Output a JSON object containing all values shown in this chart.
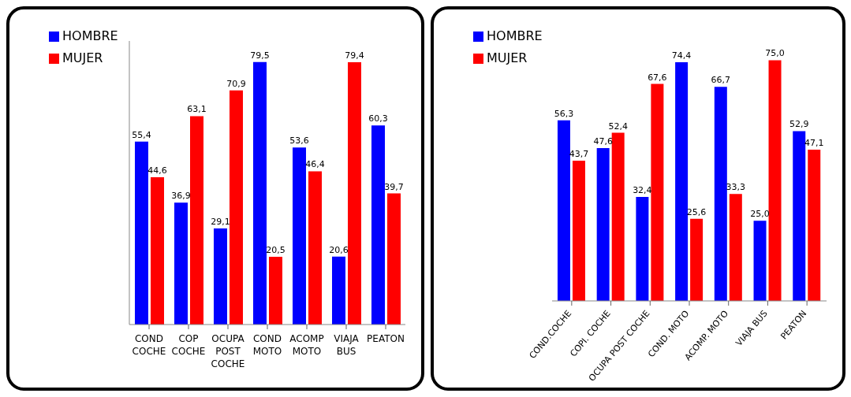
{
  "chart_data": [
    {
      "type": "bar",
      "categories": [
        "COND COCHE",
        "COP COCHE",
        "OCUPA POST COCHE",
        "COND MOTO",
        "ACOMP MOTO",
        "VIAJA BUS",
        "PEATON"
      ],
      "legend": "top left",
      "series": [
        {
          "name": "HOMBRE",
          "color": "#0000ff",
          "values": [
            55.4,
            36.9,
            29.1,
            79.5,
            53.6,
            20.6,
            60.3
          ],
          "value_labels": [
            "55,4",
            "36,9",
            "29,1",
            "79,5",
            "53,6",
            "20,6",
            "60,3"
          ]
        },
        {
          "name": "MUJER",
          "color": "#ff0000",
          "values": [
            44.6,
            63.1,
            70.9,
            20.5,
            46.4,
            79.4,
            39.7
          ],
          "value_labels": [
            "44,6",
            "63,1",
            "70,9",
            "20,5",
            "46,4",
            "79,4",
            "39,7"
          ]
        }
      ]
    },
    {
      "type": "bar",
      "categories": [
        "COND.COCHE",
        "COPI. COCHE",
        "OCUPA POST COCHE",
        "COND. MOTO",
        "ACOMP. MOTO",
        "VIAJA BUS",
        "PEATON"
      ],
      "legend": "top left",
      "series": [
        {
          "name": "HOMBRE",
          "color": "#0000ff",
          "values": [
            56.3,
            47.6,
            32.4,
            74.4,
            66.7,
            25.0,
            52.9
          ],
          "value_labels": [
            "56,3",
            "47,6",
            "32,4",
            "74,4",
            "66,7",
            "25,0",
            "52,9"
          ]
        },
        {
          "name": "MUJER",
          "color": "#ff0000",
          "values": [
            43.7,
            52.4,
            67.6,
            25.6,
            33.3,
            75.0,
            47.1
          ],
          "value_labels": [
            "43,7",
            "52,4",
            "67,6",
            "25,6",
            "33,3",
            "75,0",
            "47,1"
          ]
        }
      ]
    }
  ]
}
